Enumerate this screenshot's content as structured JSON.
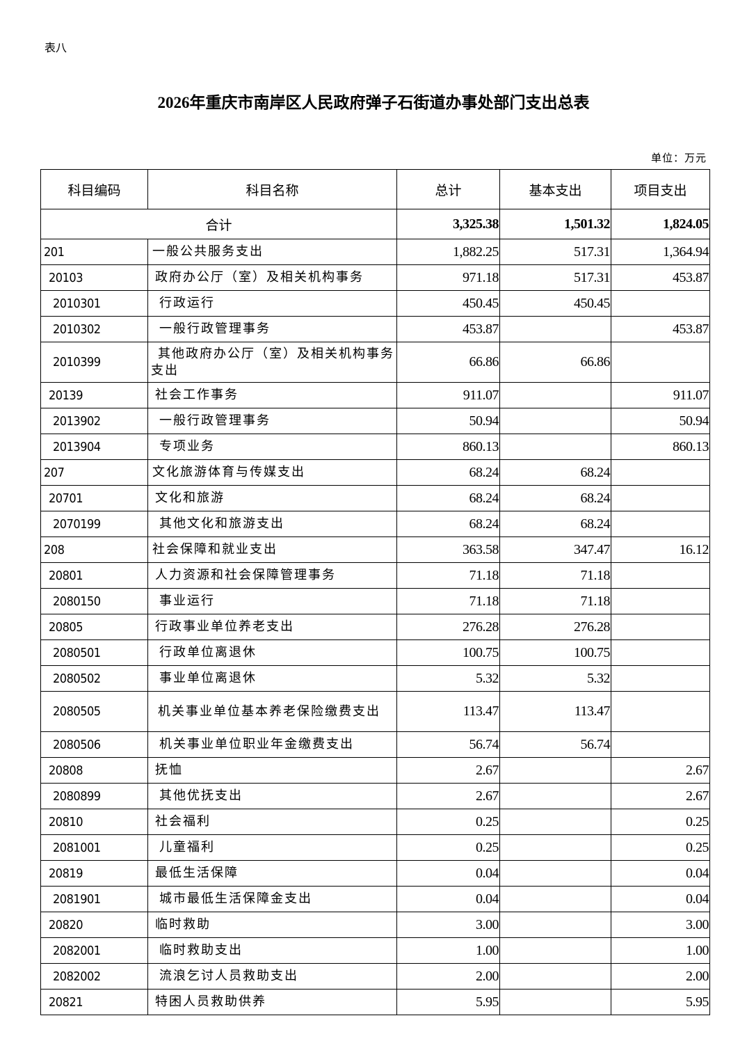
{
  "sheet_label": "表八",
  "title": "2026年重庆市南岸区人民政府弹子石街道办事处部门支出总表",
  "unit": "单位：万元",
  "table": {
    "headers": [
      "科目编码",
      "科目名称",
      "总计",
      "基本支出",
      "项目支出"
    ],
    "total": {
      "label": "合计",
      "total": "3,325.38",
      "basic": "1,501.32",
      "project": "1,824.05"
    },
    "rows": [
      {
        "code": "201",
        "name": "一般公共服务支出",
        "total": "1,882.25",
        "basic": "517.31",
        "project": "1,364.94",
        "level": 1
      },
      {
        "code": "20103",
        "name": "政府办公厅（室）及相关机构事务",
        "total": "971.18",
        "basic": "517.31",
        "project": "453.87",
        "level": 2
      },
      {
        "code": "2010301",
        "name": "行政运行",
        "total": "450.45",
        "basic": "450.45",
        "project": "",
        "level": 3
      },
      {
        "code": "2010302",
        "name": "一般行政管理事务",
        "total": "453.87",
        "basic": "",
        "project": "453.87",
        "level": 3
      },
      {
        "code": "2010399",
        "name": "其他政府办公厅（室）及相关机构事务支出",
        "total": "66.86",
        "basic": "66.86",
        "project": "",
        "level": 3,
        "tall": true
      },
      {
        "code": "20139",
        "name": "社会工作事务",
        "total": "911.07",
        "basic": "",
        "project": "911.07",
        "level": 2
      },
      {
        "code": "2013902",
        "name": "一般行政管理事务",
        "total": "50.94",
        "basic": "",
        "project": "50.94",
        "level": 3
      },
      {
        "code": "2013904",
        "name": "专项业务",
        "total": "860.13",
        "basic": "",
        "project": "860.13",
        "level": 3
      },
      {
        "code": "207",
        "name": "文化旅游体育与传媒支出",
        "total": "68.24",
        "basic": "68.24",
        "project": "",
        "level": 1
      },
      {
        "code": "20701",
        "name": "文化和旅游",
        "total": "68.24",
        "basic": "68.24",
        "project": "",
        "level": 2
      },
      {
        "code": "2070199",
        "name": "其他文化和旅游支出",
        "total": "68.24",
        "basic": "68.24",
        "project": "",
        "level": 3
      },
      {
        "code": "208",
        "name": "社会保障和就业支出",
        "total": "363.58",
        "basic": "347.47",
        "project": "16.12",
        "level": 1
      },
      {
        "code": "20801",
        "name": "人力资源和社会保障管理事务",
        "total": "71.18",
        "basic": "71.18",
        "project": "",
        "level": 2
      },
      {
        "code": "2080150",
        "name": "事业运行",
        "total": "71.18",
        "basic": "71.18",
        "project": "",
        "level": 3
      },
      {
        "code": "20805",
        "name": "行政事业单位养老支出",
        "total": "276.28",
        "basic": "276.28",
        "project": "",
        "level": 2
      },
      {
        "code": "2080501",
        "name": "行政单位离退休",
        "total": "100.75",
        "basic": "100.75",
        "project": "",
        "level": 3
      },
      {
        "code": "2080502",
        "name": "事业单位离退休",
        "total": "5.32",
        "basic": "5.32",
        "project": "",
        "level": 3
      },
      {
        "code": "2080505",
        "name": "机关事业单位基本养老保险缴费支出",
        "total": "113.47",
        "basic": "113.47",
        "project": "",
        "level": 3,
        "tall": true
      },
      {
        "code": "2080506",
        "name": "机关事业单位职业年金缴费支出",
        "total": "56.74",
        "basic": "56.74",
        "project": "",
        "level": 3
      },
      {
        "code": "20808",
        "name": "抚恤",
        "total": "2.67",
        "basic": "",
        "project": "2.67",
        "level": 2
      },
      {
        "code": "2080899",
        "name": "其他优抚支出",
        "total": "2.67",
        "basic": "",
        "project": "2.67",
        "level": 3
      },
      {
        "code": "20810",
        "name": "社会福利",
        "total": "0.25",
        "basic": "",
        "project": "0.25",
        "level": 2
      },
      {
        "code": "2081001",
        "name": "儿童福利",
        "total": "0.25",
        "basic": "",
        "project": "0.25",
        "level": 3
      },
      {
        "code": "20819",
        "name": "最低生活保障",
        "total": "0.04",
        "basic": "",
        "project": "0.04",
        "level": 2
      },
      {
        "code": "2081901",
        "name": "城市最低生活保障金支出",
        "total": "0.04",
        "basic": "",
        "project": "0.04",
        "level": 3
      },
      {
        "code": "20820",
        "name": "临时救助",
        "total": "3.00",
        "basic": "",
        "project": "3.00",
        "level": 2
      },
      {
        "code": "2082001",
        "name": "临时救助支出",
        "total": "1.00",
        "basic": "",
        "project": "1.00",
        "level": 3
      },
      {
        "code": "2082002",
        "name": "流浪乞讨人员救助支出",
        "total": "2.00",
        "basic": "",
        "project": "2.00",
        "level": 3
      },
      {
        "code": "20821",
        "name": "特困人员救助供养",
        "total": "5.95",
        "basic": "",
        "project": "5.95",
        "level": 2
      }
    ]
  }
}
